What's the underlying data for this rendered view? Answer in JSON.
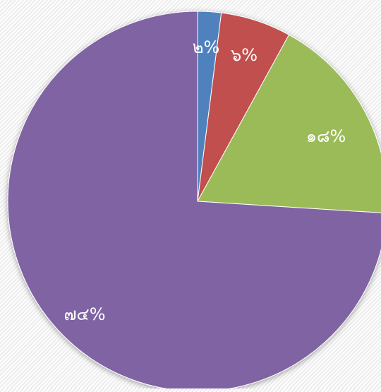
{
  "chart_data": {
    "type": "pie",
    "title": "",
    "slices": [
      {
        "label": "๒%",
        "value": 2,
        "color": "#4F81BD"
      },
      {
        "label": "๖%",
        "value": 6,
        "color": "#C0504D"
      },
      {
        "label": "๑๘%",
        "value": 18,
        "color": "#9BBB59"
      },
      {
        "label": "๗๔%",
        "value": 74,
        "color": "#8064A2"
      }
    ],
    "start_angle_deg": 0,
    "direction": "clockwise",
    "legend": "none"
  }
}
